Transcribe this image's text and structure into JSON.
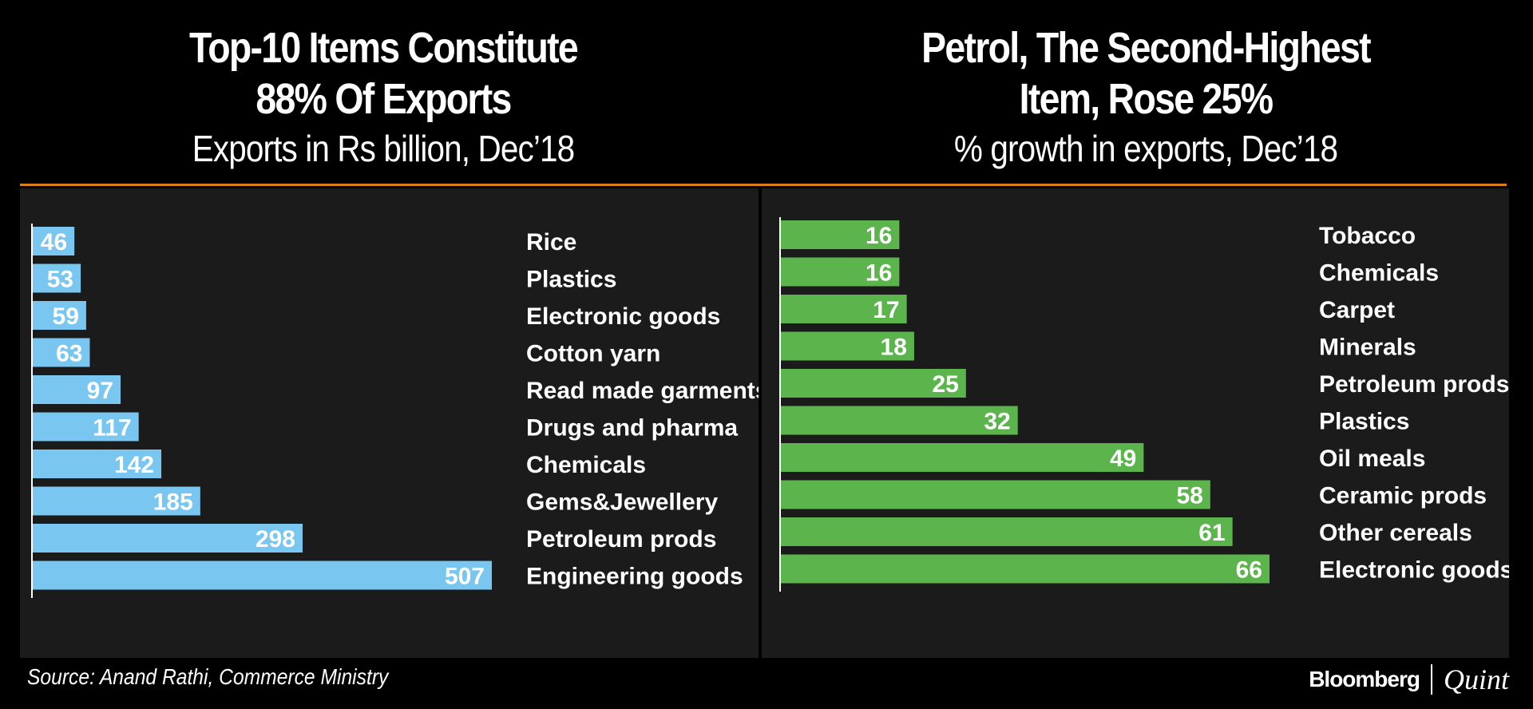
{
  "left_header": {
    "title_line1": "Top-10 Items Constitute",
    "title_line2": "88% Of Exports",
    "subtitle": "Exports in Rs billion, Dec’18"
  },
  "right_header": {
    "title_line1": "Petrol, The Second-Highest",
    "title_line2": "Item, Rose 25%",
    "subtitle": "% growth in exports, Dec’18"
  },
  "footer": {
    "source": "Source: Anand Rathi, Commerce Ministry",
    "brand_main": "Bloomberg",
    "brand_secondary": "Quint"
  },
  "colors": {
    "accent_rule": "#e07a1e",
    "left_bar": "#79c6f0",
    "right_bar": "#5cb54c",
    "panel_bg": "#1b1b1b"
  },
  "chart_data": [
    {
      "type": "bar",
      "orientation": "horizontal",
      "title": "Top-10 Items Constitute 88% Of Exports",
      "subtitle": "Exports in Rs billion, Dec’18",
      "categories": [
        "Rice",
        "Plastics",
        "Electronic goods",
        "Cotton yarn",
        "Read made garments",
        "Drugs and pharma",
        "Chemicals",
        "Gems&Jewellery",
        "Petroleum prods",
        "Engineering goods"
      ],
      "values": [
        46,
        53,
        59,
        63,
        97,
        117,
        142,
        185,
        298,
        507
      ],
      "xlim": [
        0,
        507
      ]
    },
    {
      "type": "bar",
      "orientation": "horizontal",
      "title": "Petrol, The Second-Highest Item, Rose 25%",
      "subtitle": "% growth in exports, Dec’18",
      "categories": [
        "Tobacco",
        "Chemicals",
        "Carpet",
        "Minerals",
        "Petroleum prods",
        "Plastics",
        "Oil meals",
        "Ceramic prods",
        "Other cereals",
        "Electronic goods"
      ],
      "values": [
        16,
        16,
        17,
        18,
        25,
        32,
        49,
        58,
        61,
        66
      ],
      "xlim": [
        0,
        66
      ]
    }
  ]
}
